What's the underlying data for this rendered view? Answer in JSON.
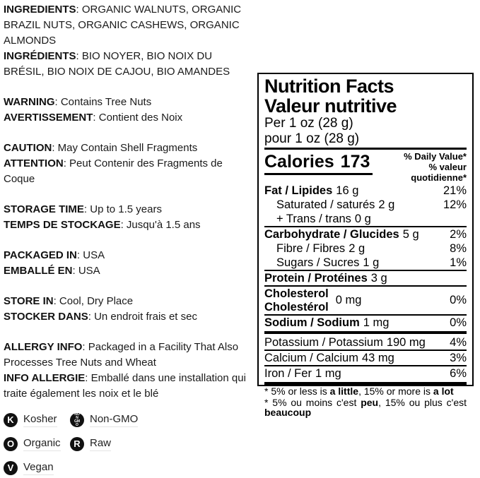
{
  "left": {
    "sections": [
      {
        "lines": [
          {
            "label": "INGREDIENTS",
            "text": ": ORGANIC WALNUTS, ORGANIC BRAZIL NUTS, ORGANIC CASHEWS, ORGANIC ALMONDS"
          },
          {
            "label": "INGRÉDIENTS",
            "text": ": BIO NOYER, BIO NOIX DU BRÉSIL, BIO NOIX DE CAJOU, BIO AMANDES"
          }
        ]
      },
      {
        "lines": [
          {
            "label": "WARNING",
            "text": ": Contains Tree Nuts"
          },
          {
            "label": "AVERTISSEMENT",
            "text": ": Contient des Noix"
          }
        ]
      },
      {
        "lines": [
          {
            "label": "CAUTION",
            "text": ": May Contain Shell Fragments"
          },
          {
            "label": "ATTENTION",
            "text": ": Peut Contenir des Fragments de Coque"
          }
        ]
      },
      {
        "lines": [
          {
            "label": "STORAGE TIME",
            "text": ": Up to 1.5 years"
          },
          {
            "label": "TEMPS DE STOCKAGE",
            "text": ": Jusqu'à 1.5 ans"
          }
        ]
      },
      {
        "lines": [
          {
            "label": "PACKAGED IN",
            "text": ": USA"
          },
          {
            "label": "EMBALLÉ EN",
            "text": ": USA"
          }
        ]
      },
      {
        "lines": [
          {
            "label": "STORE IN",
            "text": ": Cool, Dry Place"
          },
          {
            "label": "STOCKER DANS",
            "text": ": Un endroit frais et sec"
          }
        ]
      },
      {
        "lines": [
          {
            "label": "ALLERGY INFO",
            "text": ": Packaged in a Facility That Also Processes Tree Nuts and Wheat"
          },
          {
            "label": "INFO ALLERGIE",
            "text": ": Emballé dans une installation qui traite également les noix et le blé"
          }
        ]
      }
    ]
  },
  "badges": [
    {
      "icon": "K",
      "label": "Kosher"
    },
    {
      "icon": "NON GMO",
      "label": "Non-GMO"
    },
    {
      "icon": "O",
      "label": "Organic"
    },
    {
      "icon": "R",
      "label": "Raw"
    },
    {
      "icon": "V",
      "label": "Vegan"
    }
  ],
  "nf": {
    "title_en": "Nutrition Facts",
    "title_fr": "Valeur nutritive",
    "serving_en": "Per 1 oz (28 g)",
    "serving_fr": "pour 1 oz (28 g)",
    "calories_label": "Calories",
    "calories_value": "173",
    "dv_header_en": "% Daily Value*",
    "dv_header_fr": "% valeur quotidienne*",
    "rows": [
      {
        "name": "Fat / Lipides",
        "amount": "16 g",
        "dv": "21%"
      },
      {
        "name": "Saturated / saturés",
        "amount": "2 g",
        "dv": "12%"
      },
      {
        "name": "+ Trans / trans",
        "amount": "0 g",
        "dv": ""
      },
      {
        "name": "Carbohydrate / Glucides",
        "amount": "5 g",
        "dv": "2%"
      },
      {
        "name": "Fibre / Fibres",
        "amount": "2 g",
        "dv": "8%"
      },
      {
        "name": "Sugars / Sucres",
        "amount": "1 g",
        "dv": "1%"
      },
      {
        "name": "Protein / Protéines",
        "amount": "3 g",
        "dv": ""
      },
      {
        "name": "Sodium / Sodium",
        "amount": "1 mg",
        "dv": "0%"
      },
      {
        "name": "Potassium / Potassium",
        "amount": "190 mg",
        "dv": "4%"
      },
      {
        "name": "Calcium / Calcium",
        "amount": "43 mg",
        "dv": "3%"
      },
      {
        "name": "Iron / Fer",
        "amount": "1 mg",
        "dv": "6%"
      }
    ],
    "cholesterol": {
      "name_en": "Cholesterol",
      "name_fr": "Cholestérol",
      "amount": "0 mg",
      "dv": "0%"
    },
    "footnote_en": [
      "* 5% or less is ",
      "a little",
      ", 15% or more is ",
      "a lot"
    ],
    "footnote_fr": [
      "* 5% ou moins c'est ",
      "peu",
      ", 15% ou plus c'est ",
      "beaucoup"
    ]
  },
  "colors": {
    "text": "#1a1a1a",
    "panel_line": "#000000",
    "badge_bg": "#111111"
  }
}
